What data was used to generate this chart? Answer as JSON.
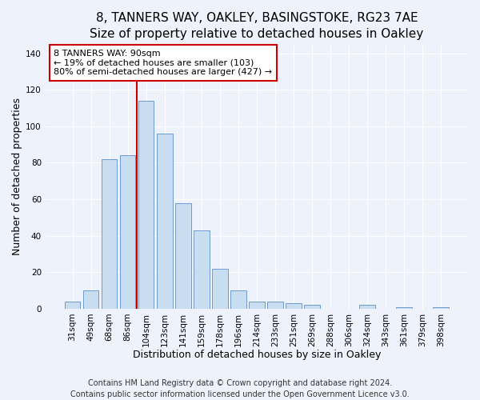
{
  "title": "8, TANNERS WAY, OAKLEY, BASINGSTOKE, RG23 7AE",
  "subtitle": "Size of property relative to detached houses in Oakley",
  "xlabel": "Distribution of detached houses by size in Oakley",
  "ylabel": "Number of detached properties",
  "bar_labels": [
    "31sqm",
    "49sqm",
    "68sqm",
    "86sqm",
    "104sqm",
    "123sqm",
    "141sqm",
    "159sqm",
    "178sqm",
    "196sqm",
    "214sqm",
    "233sqm",
    "251sqm",
    "269sqm",
    "288sqm",
    "306sqm",
    "324sqm",
    "343sqm",
    "361sqm",
    "379sqm",
    "398sqm"
  ],
  "bar_values": [
    4,
    10,
    82,
    84,
    114,
    96,
    58,
    43,
    22,
    10,
    4,
    4,
    3,
    2,
    0,
    0,
    2,
    0,
    1,
    0,
    1
  ],
  "bar_color": "#c9ddf0",
  "bar_edgecolor": "#5b8fca",
  "vline_color": "#cc0000",
  "vline_x_index": 3.5,
  "annotation_text": "8 TANNERS WAY: 90sqm\n← 19% of detached houses are smaller (103)\n80% of semi-detached houses are larger (427) →",
  "annotation_box_facecolor": "white",
  "annotation_box_edgecolor": "#cc0000",
  "ylim": [
    0,
    145
  ],
  "yticks": [
    0,
    20,
    40,
    60,
    80,
    100,
    120,
    140
  ],
  "footer1": "Contains HM Land Registry data © Crown copyright and database right 2024.",
  "footer2": "Contains public sector information licensed under the Open Government Licence v3.0.",
  "bg_color": "#eef2fb",
  "grid_color": "#ffffff",
  "title_fontsize": 11,
  "subtitle_fontsize": 10,
  "axis_label_fontsize": 9,
  "tick_fontsize": 7.5,
  "annotation_fontsize": 8,
  "footer_fontsize": 7
}
